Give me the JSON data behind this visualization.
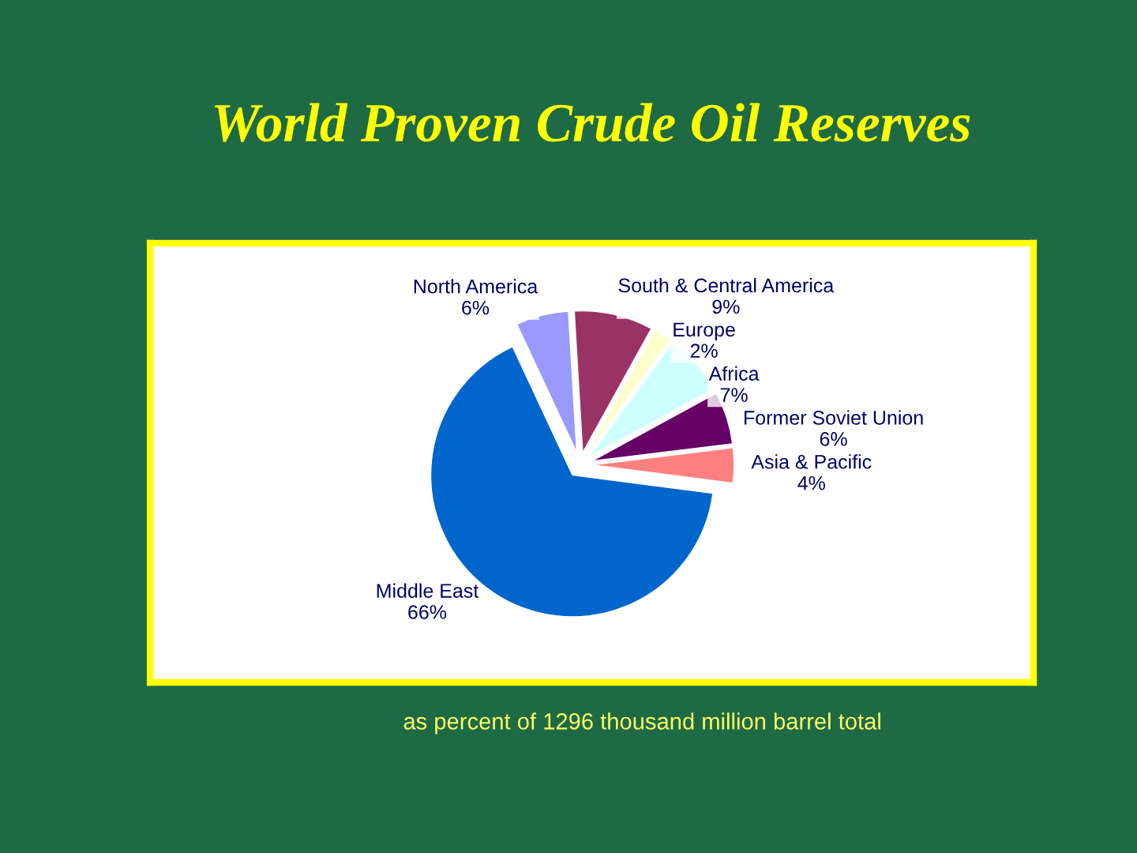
{
  "chart_data": {
    "type": "pie",
    "title": "World Proven Crude Oil Reserves",
    "categories": [
      "North America",
      "South & Central America",
      "Europe",
      "Africa",
      "Former Soviet Union",
      "Asia & Pacific",
      "Middle East"
    ],
    "values": [
      6,
      9,
      2,
      7,
      6,
      4,
      66
    ],
    "value_labels": [
      "6%",
      "9%",
      "2%",
      "7%",
      "6%",
      "4%",
      "66%"
    ],
    "colors": [
      "#9999ff",
      "#993366",
      "#ffffcc",
      "#ccffff",
      "#660066",
      "#ff8080",
      "#0066cc"
    ],
    "annotations": [
      "as percent of 1296 thousand million barrel total"
    ]
  }
}
